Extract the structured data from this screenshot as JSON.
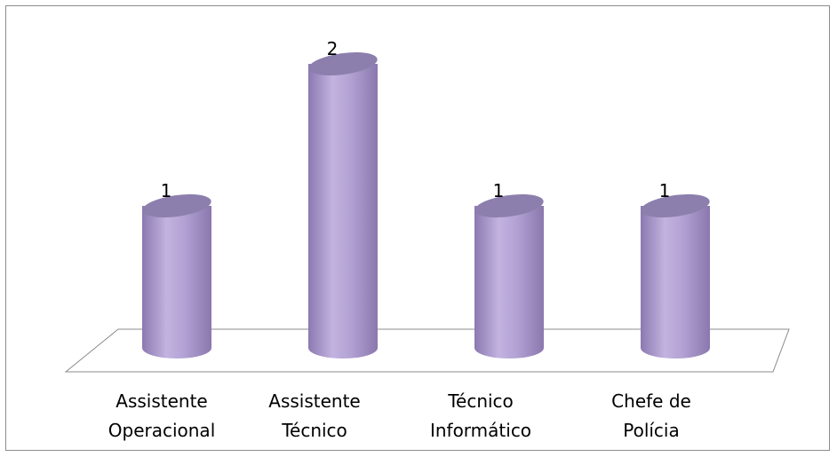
{
  "chart_data": {
    "type": "bar",
    "style": "3d-cylinder",
    "categories": [
      [
        "Assistente",
        "Operacional"
      ],
      [
        "Assistente",
        "Técnico"
      ],
      [
        "Técnico",
        "Informático"
      ],
      [
        "Chefe de",
        "Polícia"
      ]
    ],
    "values": [
      1,
      2,
      1,
      1
    ],
    "data_labels": [
      "1",
      "2",
      "1",
      "1"
    ],
    "title": "",
    "xlabel": "",
    "ylabel": "",
    "ylim": [
      0,
      2
    ],
    "grid": false,
    "legend": "none",
    "colors": {
      "bar": "#b3a2d4",
      "bar_dark": "#7f6ea3",
      "bar_top": "#8c7fad",
      "floor_stroke": "#8c8c8c",
      "frame": "#8c8c8c"
    }
  }
}
